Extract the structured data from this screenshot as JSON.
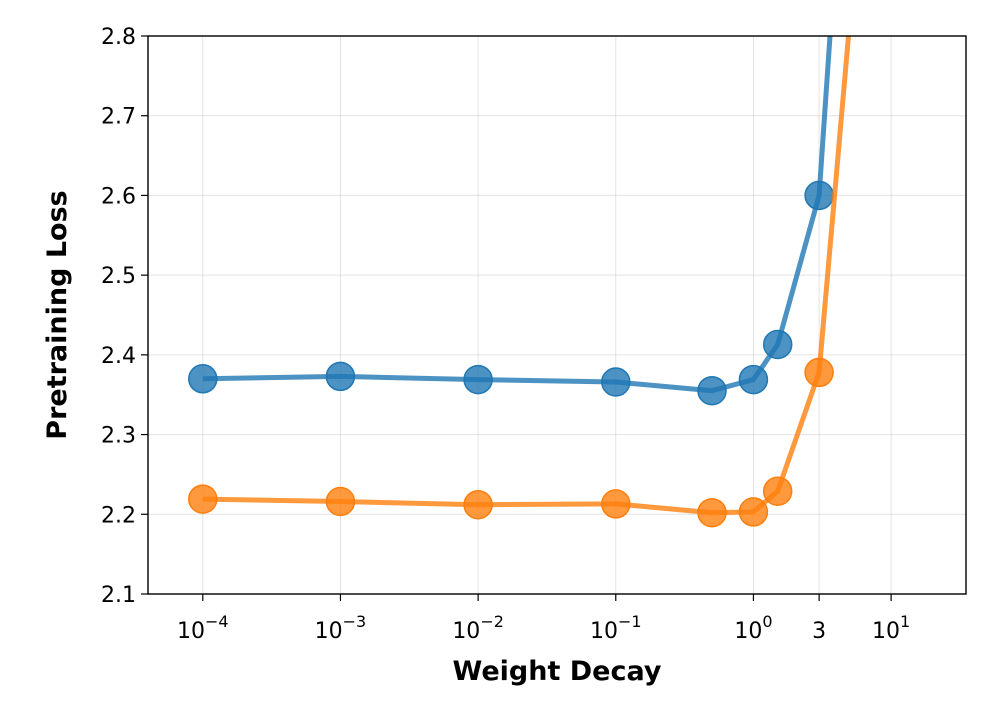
{
  "chart_data": {
    "type": "line",
    "xlabel": "Weight Decay",
    "ylabel": "Pretraining Loss",
    "xscale": "log",
    "xlim": [
      4e-05,
      35
    ],
    "ylim": [
      2.1,
      2.8
    ],
    "grid": true,
    "x_ticks": [
      {
        "value": 0.0001,
        "base": "10",
        "exp": "−4"
      },
      {
        "value": 0.001,
        "base": "10",
        "exp": "−3"
      },
      {
        "value": 0.01,
        "base": "10",
        "exp": "−2"
      },
      {
        "value": 0.1,
        "base": "10",
        "exp": "−1"
      },
      {
        "value": 1,
        "base": "10",
        "exp": "0"
      },
      {
        "value": 3,
        "base": "3",
        "exp": ""
      },
      {
        "value": 10,
        "base": "10",
        "exp": "1"
      }
    ],
    "y_ticks": [
      "2.1",
      "2.2",
      "2.3",
      "2.4",
      "2.5",
      "2.6",
      "2.7",
      "2.8"
    ],
    "series": [
      {
        "color": "#1f77b4",
        "x": [
          0.0001,
          0.001,
          0.01,
          0.1,
          0.5,
          1,
          1.5,
          3
        ],
        "y": [
          2.37,
          2.373,
          2.369,
          2.366,
          2.355,
          2.369,
          2.413,
          2.6
        ],
        "line_extension": {
          "x": 3.6,
          "y": 2.8
        }
      },
      {
        "color": "#ff7f0e",
        "x": [
          0.0001,
          0.001,
          0.01,
          0.1,
          0.5,
          1,
          1.5,
          3
        ],
        "y": [
          2.219,
          2.216,
          2.212,
          2.213,
          2.202,
          2.203,
          2.229,
          2.378
        ],
        "line_extension": {
          "x": 4.9,
          "y": 2.8
        }
      }
    ]
  }
}
